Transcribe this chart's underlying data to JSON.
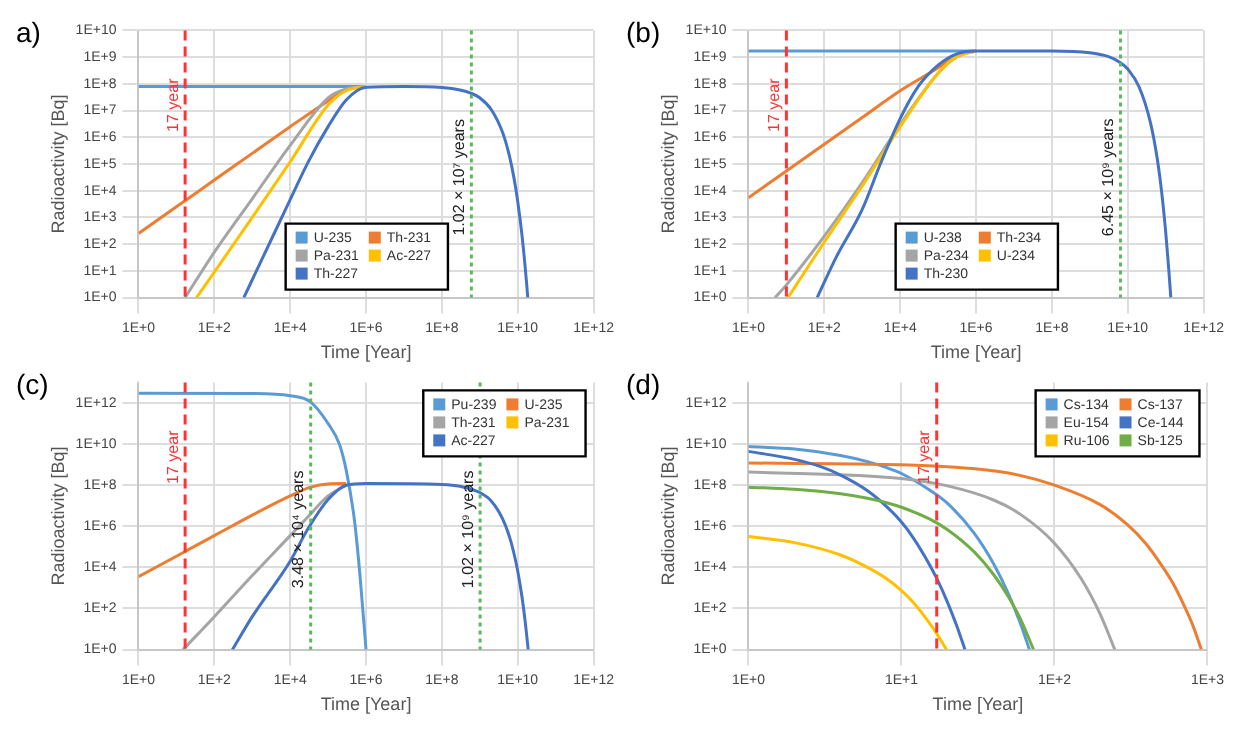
{
  "chart_data": [
    {
      "type": "line",
      "title": "a)",
      "xlabel": "Time [Year]",
      "ylabel": "Radioactivity [Bq]",
      "log": "xy",
      "grid": true,
      "marker": "none",
      "legend": "bottom right",
      "xlim": [
        1,
        1000000000000.0
      ],
      "xticks": [
        {
          "value": 1,
          "label": "1E+0"
        },
        {
          "value": 100.0,
          "label": "1E+2"
        },
        {
          "value": 10000.0,
          "label": "1E+4"
        },
        {
          "value": 1000000.0,
          "label": "1E+6"
        },
        {
          "value": 100000000.0,
          "label": "1E+8"
        },
        {
          "value": 10000000000.0,
          "label": "1E+10"
        },
        {
          "value": 1000000000000.0,
          "label": "1E+12"
        }
      ],
      "ylim": [
        1,
        10000000000.0
      ],
      "yticks": [
        {
          "value": 1,
          "label": "1E+0"
        },
        {
          "value": 10.0,
          "label": "1E+1"
        },
        {
          "value": 100.0,
          "label": "1E+2"
        },
        {
          "value": 1000.0,
          "label": "1E+3"
        },
        {
          "value": 10000.0,
          "label": "1E+4"
        },
        {
          "value": 100000.0,
          "label": "1E+5"
        },
        {
          "value": 1000000.0,
          "label": "1E+6"
        },
        {
          "value": 10000000.0,
          "label": "1E+7"
        },
        {
          "value": 100000000.0,
          "label": "1E+8"
        },
        {
          "value": 1000000000.0,
          "label": "1E+9"
        },
        {
          "value": 10000000000.0,
          "label": "1E+10"
        }
      ],
      "ref_lines": [
        {
          "axis": "x",
          "value": 17,
          "label": "17 year",
          "color": "#ff3333",
          "line_style": "dashed"
        },
        {
          "axis": "x",
          "value": 600000000.0,
          "label": "1.02 × 10⁷ years",
          "color": "#5cb85c",
          "line_style": "dotted"
        }
      ],
      "series": [
        {
          "name": "U-235",
          "color": "#5b9bd5",
          "x": [
            1,
            100000.0,
            1000000.0
          ],
          "values": [
            80000000.0,
            80000000.0,
            80000000.0
          ]
        },
        {
          "name": "Th-231",
          "color": "#ed7d31",
          "x": [
            1,
            10,
            100,
            1000,
            10000.0,
            100000.0,
            300000.0,
            1000000.0
          ],
          "values": [
            250.0,
            2500.0,
            25000.0,
            250000.0,
            2500000.0,
            23000000.0,
            60000000.0,
            80000000.0
          ]
        },
        {
          "name": "Pa-231",
          "color": "#a5a5a5",
          "x": [
            17,
            100,
            1000,
            10000.0,
            100000.0,
            300000.0,
            1000000.0
          ],
          "values": [
            1,
            50,
            5000.0,
            500000.0,
            30000000.0,
            65000000.0,
            80000000.0
          ]
        },
        {
          "name": "Ac-227",
          "color": "#ffc000",
          "x": [
            34,
            100,
            1000,
            10000.0,
            100000.0,
            300000.0,
            1000000.0
          ],
          "values": [
            1,
            9,
            1000.0,
            120000.0,
            16000000.0,
            55000000.0,
            80000000.0
          ]
        },
        {
          "name": "Th-227",
          "color": "#4472c4",
          "x": [
            600,
            2000,
            10000.0,
            30000.0,
            100000.0,
            300000.0,
            1000000.0,
            10000000.0,
            100000000.0,
            300000000.0,
            600000000.0,
            1000000000.0,
            2000000000.0,
            4000000000.0,
            6000000000.0,
            8000000000.0,
            10000000000.0,
            13000000000.0,
            17000000000.0,
            18400000000.0
          ],
          "values": [
            1,
            37,
            4600.0,
            120000.0,
            2500000.0,
            25000000.0,
            75000000.0,
            80000000.0,
            73000000.0,
            59000000.0,
            44000000.0,
            30000000.0,
            11000000.0,
            1500000.0,
            210000.0,
            29000.0,
            4000.0,
            210.0,
            4,
            1
          ]
        }
      ]
    },
    {
      "type": "line",
      "title": "(b)",
      "xlabel": "Time [Year]",
      "ylabel": "Radioactivity [Bq]",
      "log": "xy",
      "grid": true,
      "marker": "none",
      "legend": "bottom right",
      "xlim": [
        1,
        1000000000000.0
      ],
      "xticks": [
        {
          "value": 1,
          "label": "1E+0"
        },
        {
          "value": 100.0,
          "label": "1E+2"
        },
        {
          "value": 10000.0,
          "label": "1E+4"
        },
        {
          "value": 1000000.0,
          "label": "1E+6"
        },
        {
          "value": 100000000.0,
          "label": "1E+8"
        },
        {
          "value": 10000000000.0,
          "label": "1E+10"
        },
        {
          "value": 1000000000000.0,
          "label": "1E+12"
        }
      ],
      "ylim": [
        1,
        10000000000.0
      ],
      "yticks": [
        {
          "value": 1,
          "label": "1E+0"
        },
        {
          "value": 10.0,
          "label": "1E+1"
        },
        {
          "value": 100.0,
          "label": "1E+2"
        },
        {
          "value": 1000.0,
          "label": "1E+3"
        },
        {
          "value": 10000.0,
          "label": "1E+4"
        },
        {
          "value": 100000.0,
          "label": "1E+5"
        },
        {
          "value": 1000000.0,
          "label": "1E+6"
        },
        {
          "value": 10000000.0,
          "label": "1E+7"
        },
        {
          "value": 100000000.0,
          "label": "1E+8"
        },
        {
          "value": 1000000000.0,
          "label": "1E+9"
        },
        {
          "value": 10000000000.0,
          "label": "1E+10"
        }
      ],
      "ref_lines": [
        {
          "axis": "x",
          "value": 10,
          "label": "17 year",
          "color": "#ff3333",
          "line_style": "dashed"
        },
        {
          "axis": "x",
          "value": 6450000000.0,
          "label": "6.45 × 10⁹ years",
          "color": "#5cb85c",
          "line_style": "dotted"
        }
      ],
      "series": [
        {
          "name": "U-238",
          "color": "#5b9bd5",
          "x": [
            1,
            100000.0,
            1000000.0
          ],
          "values": [
            1700000000.0,
            1700000000.0,
            1700000000.0
          ]
        },
        {
          "name": "Th-234",
          "color": "#ed7d31",
          "x": [
            1,
            10,
            100,
            1000,
            10000.0,
            100000.0,
            300000.0,
            1000000.0
          ],
          "values": [
            5500.0,
            55000.0,
            550000.0,
            5500000.0,
            55000000.0,
            400000000.0,
            1200000000.0,
            1700000000.0
          ]
        },
        {
          "name": "Pa-234",
          "color": "#a5a5a5",
          "x": [
            5,
            10,
            100,
            1000,
            10000.0,
            100000.0,
            300000.0,
            1000000.0
          ],
          "values": [
            1,
            3,
            200.0,
            20000.0,
            3000000.0,
            250000000.0,
            1000000000.0,
            1700000000.0
          ]
        },
        {
          "name": "U-234",
          "color": "#ffc000",
          "x": [
            11,
            100,
            1000,
            10000.0,
            100000.0,
            300000.0,
            1000000.0
          ],
          "values": [
            1,
            120.0,
            15000.0,
            2500000.0,
            250000000.0,
            1000000000.0,
            1700000000.0
          ]
        },
        {
          "name": "Th-230",
          "color": "#4472c4",
          "x": [
            65,
            200,
            1000,
            3000,
            10000.0,
            30000.0,
            100000.0,
            300000.0,
            1000000.0,
            100000000.0,
            1000000000.0,
            3000000000.0,
            6450000000.0,
            10000000000.0,
            20000000000.0,
            40000000000.0,
            60000000000.0,
            80000000000.0,
            100000000000.0,
            120000000000.0,
            137000000000.0
          ],
          "values": [
            1,
            30,
            2000.0,
            100000.0,
            5000000.0,
            80000000.0,
            500000000.0,
            1300000000.0,
            1700000000.0,
            1700000000.0,
            1460000000.0,
            1060000000.0,
            620000000.0,
            360000000.0,
            76000000.0,
            3400000.0,
            160000.0,
            7000.0,
            300.0,
            13,
            1
          ]
        }
      ]
    },
    {
      "type": "line",
      "title": "(c)",
      "xlabel": "Time [Year]",
      "ylabel": "Radioactivity [Bq]",
      "log": "xy",
      "grid": true,
      "marker": "none",
      "legend": "top right",
      "xlim": [
        1,
        1000000000000.0
      ],
      "xticks": [
        {
          "value": 1,
          "label": "1E+0"
        },
        {
          "value": 100.0,
          "label": "1E+2"
        },
        {
          "value": 10000.0,
          "label": "1E+4"
        },
        {
          "value": 1000000.0,
          "label": "1E+6"
        },
        {
          "value": 100000000.0,
          "label": "1E+8"
        },
        {
          "value": 10000000000.0,
          "label": "1E+10"
        },
        {
          "value": 1000000000000.0,
          "label": "1E+12"
        }
      ],
      "ylim": [
        1,
        10000000000000.0
      ],
      "yticks": [
        {
          "value": 1,
          "label": "1E+0"
        },
        {
          "value": 100.0,
          "label": "1E+2"
        },
        {
          "value": 10000.0,
          "label": "1E+4"
        },
        {
          "value": 1000000.0,
          "label": "1E+6"
        },
        {
          "value": 100000000.0,
          "label": "1E+8"
        },
        {
          "value": 10000000000.0,
          "label": "1E+10"
        },
        {
          "value": 1000000000000.0,
          "label": "1E+12"
        }
      ],
      "ref_lines": [
        {
          "axis": "x",
          "value": 17,
          "label": "17 year",
          "color": "#ff3333",
          "line_style": "dashed"
        },
        {
          "axis": "x",
          "value": 34800.0,
          "label": "3.48 × 10⁴ years",
          "color": "#5cb85c",
          "line_style": "dotted"
        },
        {
          "axis": "x",
          "value": 1020000000.0,
          "label": "1.02 × 10⁹ years",
          "color": "#5cb85c",
          "line_style": "dotted"
        }
      ],
      "series": [
        {
          "name": "Pu-239",
          "color": "#5b9bd5",
          "x": [
            1,
            1000,
            10000.0,
            34800.0,
            100000.0,
            200000.0,
            300000.0,
            500000.0,
            700000.0,
            1000000.0
          ],
          "values": [
            3000000000000.0,
            2900000000000.0,
            2250000000000.0,
            1100000000000.0,
            100000000000.0,
            9600000000.0,
            540000000.0,
            1700000.0,
            3300.0,
            1
          ]
        },
        {
          "name": "U-235",
          "color": "#ed7d31",
          "x": [
            1,
            10,
            100,
            1000,
            10000.0,
            34800.0,
            100000.0,
            300000.0
          ],
          "values": [
            3500.0,
            35000.0,
            350000.0,
            3500000.0,
            30000000.0,
            80000000.0,
            115000000.0,
            120000000.0
          ]
        },
        {
          "name": "Th-231",
          "color": "#a5a5a5",
          "x": [
            15,
            100,
            1000,
            10000.0,
            30000.0,
            100000.0,
            300000.0
          ],
          "values": [
            1,
            40,
            4000.0,
            350000.0,
            3000000.0,
            30000000.0,
            100000000.0
          ]
        },
        {
          "name": "Pa-231",
          "color": "#ffc000"
        },
        {
          "name": "Ac-227",
          "color": "#4472c4",
          "x": [
            300,
            1000,
            10000.0,
            30000.0,
            100000.0,
            300000.0,
            1000000.0,
            100000000.0,
            300000000.0,
            1000000000.0,
            2000000000.0,
            4000000000.0,
            6000000000.0,
            8000000000.0,
            10000000000.0,
            13000000000.0,
            16000000000.0,
            18900000000.0
          ],
          "values": [
            1,
            40,
            20000.0,
            800000.0,
            20000000.0,
            100000000.0,
            120000000.0,
            109000000.0,
            89000000.0,
            44000000.0,
            17000000.0,
            2300000.0,
            330000.0,
            46000.0,
            6600.0,
            350.0,
            18,
            1
          ]
        }
      ]
    },
    {
      "type": "line",
      "title": "(d)",
      "xlabel": "Time [Year]",
      "ylabel": "Radioactivity [Bq]",
      "log": "xy",
      "grid": true,
      "marker": "none",
      "legend": "top right",
      "xlim": [
        1,
        1000
      ],
      "xticks": [
        {
          "value": 1,
          "label": "1E+0"
        },
        {
          "value": 10,
          "label": "1E+1"
        },
        {
          "value": 100,
          "label": "1E+2"
        },
        {
          "value": 1000,
          "label": "1E+3"
        }
      ],
      "ylim": [
        1,
        10000000000000.0
      ],
      "yticks": [
        {
          "value": 1,
          "label": "1E+0"
        },
        {
          "value": 100.0,
          "label": "1E+2"
        },
        {
          "value": 10000.0,
          "label": "1E+4"
        },
        {
          "value": 1000000.0,
          "label": "1E+6"
        },
        {
          "value": 100000000.0,
          "label": "1E+8"
        },
        {
          "value": 10000000000.0,
          "label": "1E+10"
        },
        {
          "value": 1000000000000.0,
          "label": "1E+12"
        }
      ],
      "ref_lines": [
        {
          "axis": "x",
          "value": 17,
          "label": "17 year",
          "color": "#ff3333",
          "line_style": "dashed"
        }
      ],
      "series": [
        {
          "name": "Cs-134",
          "color": "#5b9bd5",
          "x": [
            1,
            2,
            4,
            6,
            8,
            10,
            15,
            20,
            30,
            40,
            50,
            60,
            68.6
          ],
          "values": [
            7600000000.0,
            5700000000.0,
            2800000000.0,
            1400000000.0,
            710000000.0,
            370000000.0,
            63000000.0,
            13000000.0,
            440000.0,
            15000.0,
            520.0,
            18,
            1
          ]
        },
        {
          "name": "Cs-137",
          "color": "#ed7d31",
          "x": [
            1,
            10,
            20,
            50,
            100,
            200,
            300,
            400,
            500,
            600,
            700,
            800,
            913
          ],
          "values": [
            1200000000.0,
            990000000.0,
            790000000.0,
            390000000.0,
            100000000.0,
            11000000.0,
            1200000.0,
            130000.0,
            13000.0,
            1500.0,
            150.0,
            16,
            1
          ]
        },
        {
          "name": "Eu-154",
          "color": "#a5a5a5",
          "x": [
            1,
            10,
            20,
            40,
            60,
            100,
            150,
            200,
            248
          ],
          "values": [
            440000000.0,
            210000000.0,
            92000000.0,
            19000000.0,
            3800000.0,
            150000.0,
            2700.0,
            49,
            1
          ]
        },
        {
          "name": "Ce-144",
          "color": "#4472c4",
          "x": [
            1,
            2,
            3,
            4,
            6,
            8,
            10,
            12,
            15,
            17,
            20,
            23,
            26
          ],
          "values": [
            4400000000.0,
            1800000000.0,
            770000000.0,
            310000000.0,
            54000000.0,
            9100000.0,
            1600000.0,
            260000.0,
            17000.0,
            2900.0,
            200.0,
            14,
            1
          ]
        },
        {
          "name": "Ru-106",
          "color": "#ffc000",
          "x": [
            1,
            2,
            4,
            6,
            8,
            10,
            12,
            15,
            17,
            19.7
          ],
          "values": [
            320000.0,
            160000.0,
            40000.0,
            10000.0,
            2800.0,
            740.0,
            190.0,
            23,
            6,
            1
          ]
        },
        {
          "name": "Sb-125",
          "color": "#70ad47",
          "x": [
            1,
            2,
            4,
            6,
            8,
            10,
            15,
            20,
            30,
            40,
            50,
            60,
            73
          ],
          "values": [
            80000000.0,
            63000000.0,
            38000000.0,
            23000000.0,
            14000000.0,
            8400000.0,
            2400000.0,
            680000.0,
            55000.0,
            4500.0,
            370.0,
            30,
            1
          ]
        }
      ]
    }
  ]
}
